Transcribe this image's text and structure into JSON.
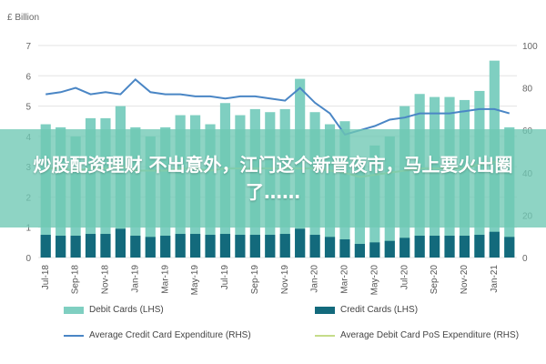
{
  "headline": "炒股配资理财 不出意外，江门这个新晋夜市，马上要火出圈了……",
  "chart_data": {
    "type": "bar",
    "ylabel_left": "£ Billion",
    "ylim_left": [
      0,
      7
    ],
    "yticks_left": [
      "0",
      "1",
      "2",
      "3",
      "4",
      "5",
      "6",
      "7"
    ],
    "ylim_right": [
      0,
      100
    ],
    "yticks_right": [
      "0",
      "20",
      "40",
      "60",
      "80",
      "100"
    ],
    "categories": [
      "Jul-18",
      "Aug-18",
      "Sep-18",
      "Oct-18",
      "Nov-18",
      "Dec-18",
      "Jan-19",
      "Feb-19",
      "Mar-19",
      "Apr-19",
      "May-19",
      "Jun-19",
      "Jul-19",
      "Aug-19",
      "Sep-19",
      "Oct-19",
      "Nov-19",
      "Dec-19",
      "Jan-20",
      "Feb-20",
      "Mar-20",
      "Apr-20",
      "May-20",
      "Jun-20",
      "Jul-20",
      "Aug-20",
      "Sep-20",
      "Oct-20",
      "Nov-20",
      "Dec-20",
      "Jan-21",
      "Feb-21"
    ],
    "tick_labels": [
      "Jul-18",
      "Sep-18",
      "Nov-18",
      "Jan-19",
      "Mar-19",
      "May-19",
      "Jul-19",
      "Sep-19",
      "Nov-19",
      "Jan-20",
      "Mar-20",
      "May-20",
      "Jul-20",
      "Sep-20",
      "Nov-20",
      "Jan-21"
    ],
    "series": [
      {
        "name": "Debit Cards (LHS)",
        "kind": "bar",
        "axis": "left",
        "color": "#7fcfc1",
        "values": [
          4.4,
          4.3,
          4.0,
          4.6,
          4.6,
          5.0,
          4.3,
          4.0,
          4.3,
          4.7,
          4.7,
          4.4,
          5.1,
          4.7,
          4.9,
          4.8,
          4.9,
          5.9,
          4.8,
          4.4,
          4.5,
          3.3,
          3.7,
          4.0,
          5.0,
          5.4,
          5.3,
          5.3,
          5.2,
          5.5,
          6.5,
          4.3
        ]
      },
      {
        "name": "Credit Cards (LHS)",
        "kind": "bar",
        "axis": "left",
        "color": "#136a7c",
        "values": [
          0.75,
          0.72,
          0.72,
          0.78,
          0.78,
          0.95,
          0.72,
          0.68,
          0.72,
          0.78,
          0.78,
          0.75,
          0.78,
          0.75,
          0.75,
          0.75,
          0.78,
          0.95,
          0.75,
          0.68,
          0.6,
          0.45,
          0.5,
          0.55,
          0.65,
          0.72,
          0.72,
          0.72,
          0.72,
          0.75,
          0.85,
          0.68
        ]
      },
      {
        "name": "Average Credit Card Expenditure (RHS)",
        "kind": "line",
        "axis": "right",
        "color": "#4a86c5",
        "values": [
          77,
          78,
          80,
          77,
          78,
          77,
          84,
          78,
          77,
          77,
          76,
          76,
          75,
          76,
          76,
          75,
          74,
          80,
          73,
          68,
          58,
          60,
          62,
          65,
          66,
          68,
          68,
          68,
          69,
          70,
          70,
          68
        ]
      },
      {
        "name": "Average Debit Card PoS Expenditure (RHS)",
        "kind": "line",
        "axis": "right",
        "color": "#c5dc8a",
        "values": [
          42,
          42,
          41,
          42,
          42,
          43,
          41,
          41,
          41,
          42,
          42,
          41,
          42,
          42,
          42,
          42,
          42,
          42,
          42,
          41,
          40,
          38,
          39,
          40,
          41,
          42,
          42,
          42,
          42,
          44,
          45,
          43
        ]
      }
    ]
  }
}
